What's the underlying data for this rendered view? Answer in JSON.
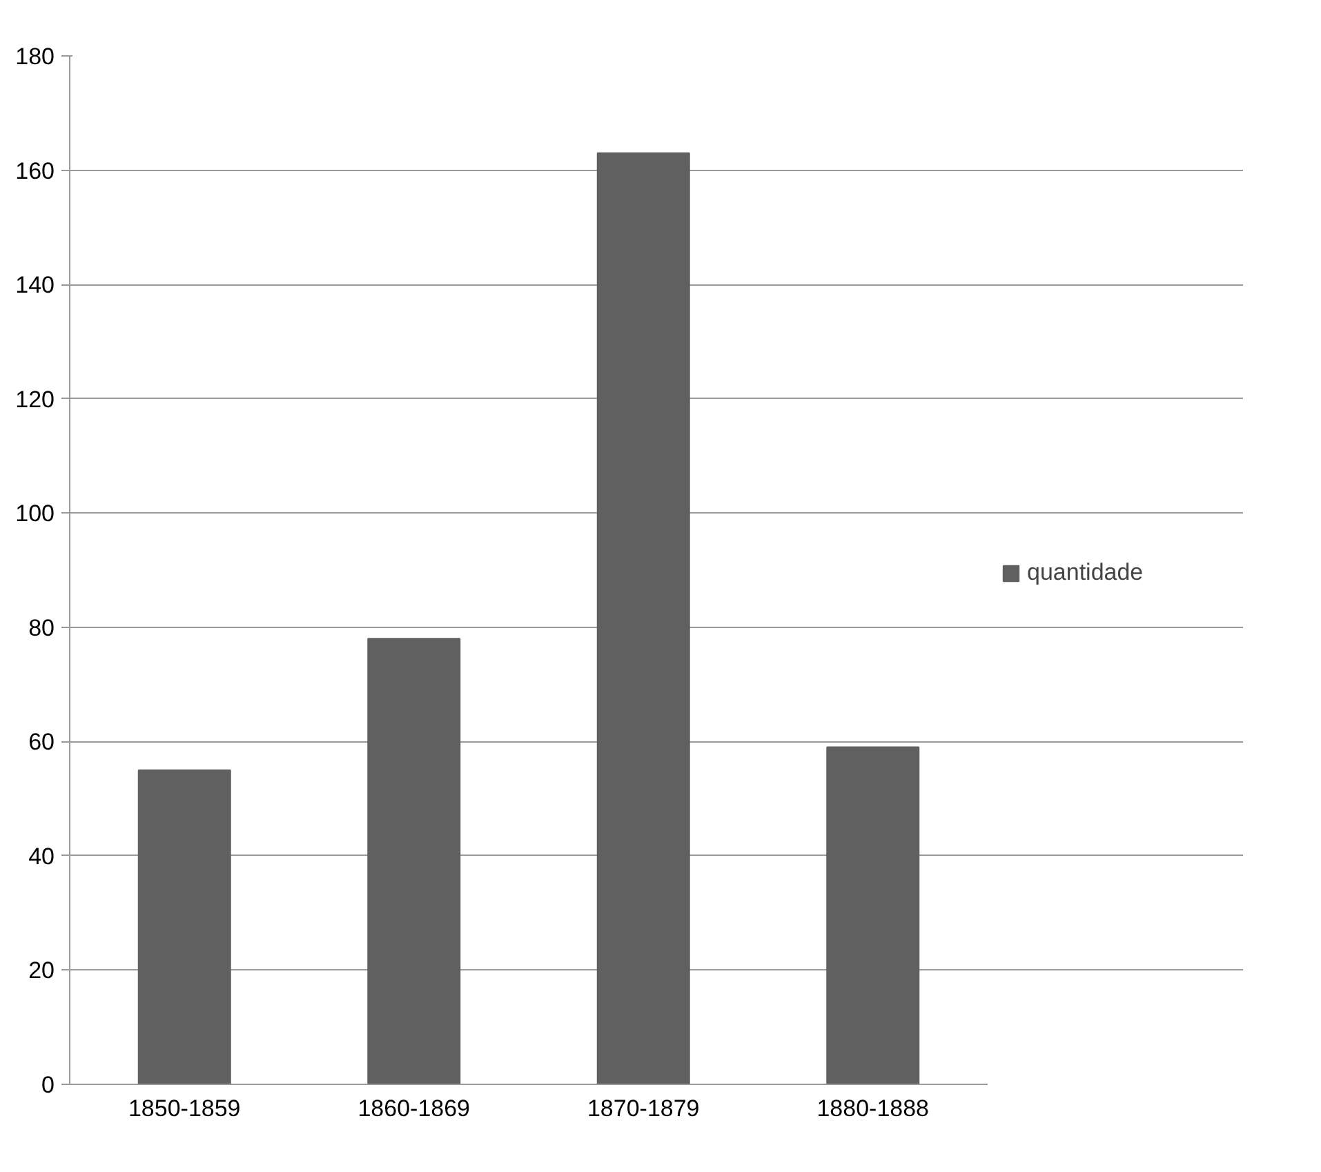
{
  "chart_data": {
    "type": "bar",
    "categories": [
      "1850-1859",
      "1860-1869",
      "1870-1879",
      "1880-1888"
    ],
    "series": [
      {
        "name": "quantidade",
        "color": "#606060",
        "values": [
          55,
          78,
          163,
          59
        ]
      }
    ],
    "ylim": [
      0,
      180
    ],
    "yticks": [
      0,
      20,
      40,
      60,
      80,
      100,
      120,
      140,
      160,
      180
    ],
    "grid": "y",
    "legend": "right"
  }
}
